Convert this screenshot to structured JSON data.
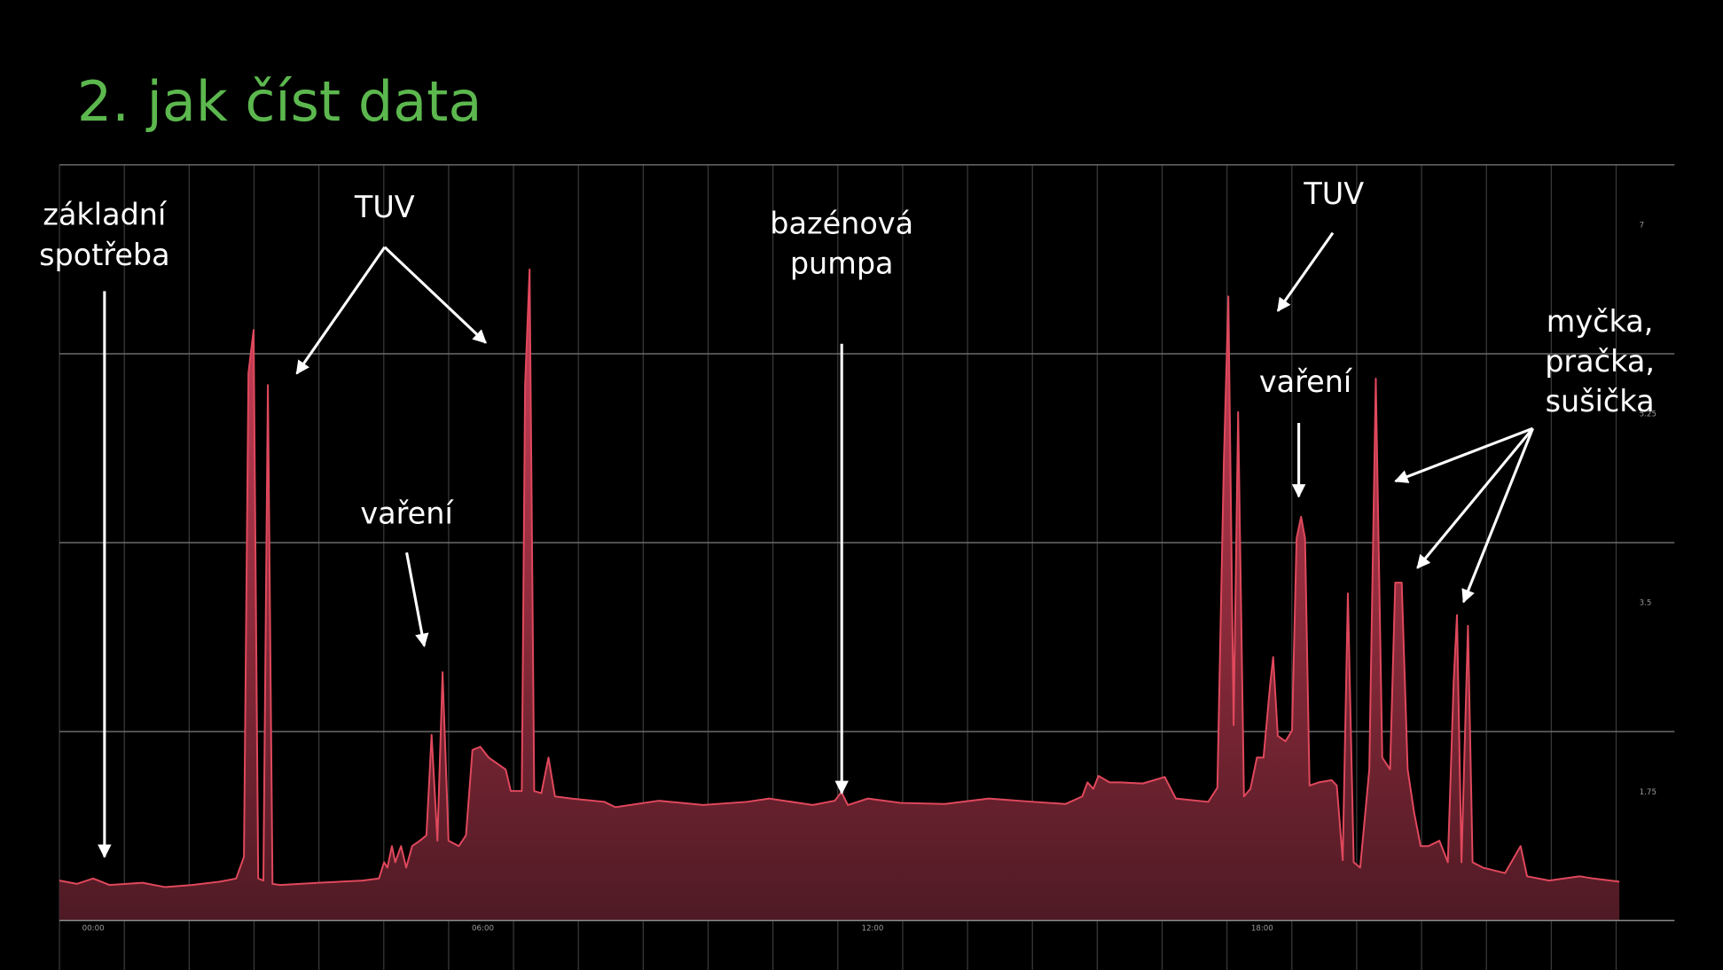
{
  "chart_data": {
    "type": "area",
    "title": "2. jak číst data",
    "x": [
      -0.52,
      -0.25,
      0,
      0.25,
      0.76,
      1.1,
      1.52,
      1.95,
      2.2,
      2.32,
      2.39,
      2.47,
      2.54,
      2.62,
      2.69,
      2.76,
      2.88,
      3.47,
      4.15,
      4.4,
      4.48,
      4.53,
      4.6,
      4.65,
      4.74,
      4.82,
      4.91,
      5.03,
      5.13,
      5.21,
      5.3,
      5.38,
      5.47,
      5.63,
      5.74,
      5.84,
      5.96,
      6.09,
      6.35,
      6.43,
      6.6,
      6.65,
      6.72,
      6.79,
      6.9,
      7.01,
      7.11,
      7.36,
      7.87,
      8.04,
      8.71,
      9.39,
      10.07,
      10.41,
      11.08,
      11.42,
      11.52,
      11.62,
      11.93,
      12.44,
      13.11,
      13.79,
      14.47,
      14.97,
      15.23,
      15.31,
      15.4,
      15.48,
      15.65,
      15.82,
      16.16,
      16.5,
      16.67,
      17.17,
      17.31,
      17.41,
      17.48,
      17.56,
      17.63,
      17.72,
      17.82,
      17.92,
      18.02,
      18.12,
      18.17,
      18.24,
      18.36,
      18.46,
      18.53,
      18.6,
      18.66,
      18.73,
      18.87,
      19.07,
      19.15,
      19.24,
      19.32,
      19.41,
      19.51,
      19.65,
      19.75,
      19.85,
      19.97,
      20.05,
      20.15,
      20.24,
      20.34,
      20.44,
      20.56,
      20.73,
      20.86,
      20.95,
      21.0,
      21.07,
      21.17,
      21.24,
      21.4,
      21.74,
      21.98,
      22.08,
      22.42,
      22.89,
      23.1,
      23.5
    ],
    "series": [
      {
        "color": "#e0485c",
        "values": [
          0.37,
          0.34,
          0.39,
          0.33,
          0.35,
          0.31,
          0.33,
          0.36,
          0.39,
          0.59,
          5.07,
          5.47,
          0.39,
          0.37,
          4.96,
          0.34,
          0.33,
          0.35,
          0.37,
          0.39,
          0.54,
          0.49,
          0.69,
          0.54,
          0.69,
          0.49,
          0.69,
          0.74,
          0.79,
          1.72,
          0.74,
          2.3,
          0.74,
          0.69,
          0.79,
          1.58,
          1.61,
          1.51,
          1.4,
          1.2,
          1.2,
          4.96,
          6.03,
          1.2,
          1.18,
          1.51,
          1.15,
          1.13,
          1.1,
          1.05,
          1.11,
          1.07,
          1.1,
          1.13,
          1.07,
          1.11,
          1.19,
          1.07,
          1.13,
          1.09,
          1.08,
          1.13,
          1.1,
          1.08,
          1.15,
          1.28,
          1.22,
          1.34,
          1.28,
          1.28,
          1.27,
          1.33,
          1.13,
          1.1,
          1.23,
          4.25,
          5.78,
          1.81,
          4.71,
          1.15,
          1.22,
          1.51,
          1.51,
          2.17,
          2.44,
          1.71,
          1.66,
          1.76,
          3.54,
          3.74,
          3.54,
          1.25,
          1.28,
          1.3,
          1.25,
          0.56,
          3.03,
          0.54,
          0.49,
          1.4,
          5.02,
          1.51,
          1.4,
          3.13,
          3.13,
          1.4,
          1.0,
          0.69,
          0.69,
          0.74,
          0.54,
          2.22,
          2.83,
          0.54,
          2.73,
          0.54,
          0.49,
          0.44,
          0.69,
          0.41,
          0.37,
          0.41,
          0.39,
          0.36
        ]
      }
    ],
    "xlim": [
      -0.52,
      24.35
    ],
    "xticks": [
      {
        "value": 0,
        "label": "00:00"
      },
      {
        "value": 6,
        "label": "06:00"
      },
      {
        "value": 12,
        "label": "12:00"
      },
      {
        "value": 18,
        "label": "18:00"
      }
    ],
    "ylim": [
      0,
      7
    ],
    "yticks": [
      1.75,
      3.5,
      5.25,
      7
    ],
    "grid": true,
    "annotations": [
      {
        "lines": [
          "základní",
          "spotřeba"
        ]
      },
      {
        "lines": [
          "TUV"
        ]
      },
      {
        "lines": [
          "vaření"
        ]
      },
      {
        "lines": [
          "bazénová",
          "pumpa"
        ]
      },
      {
        "lines": [
          "TUV"
        ]
      },
      {
        "lines": [
          "vaření"
        ]
      },
      {
        "lines": [
          "myčka,",
          "pračka,",
          "sušička"
        ]
      }
    ]
  }
}
